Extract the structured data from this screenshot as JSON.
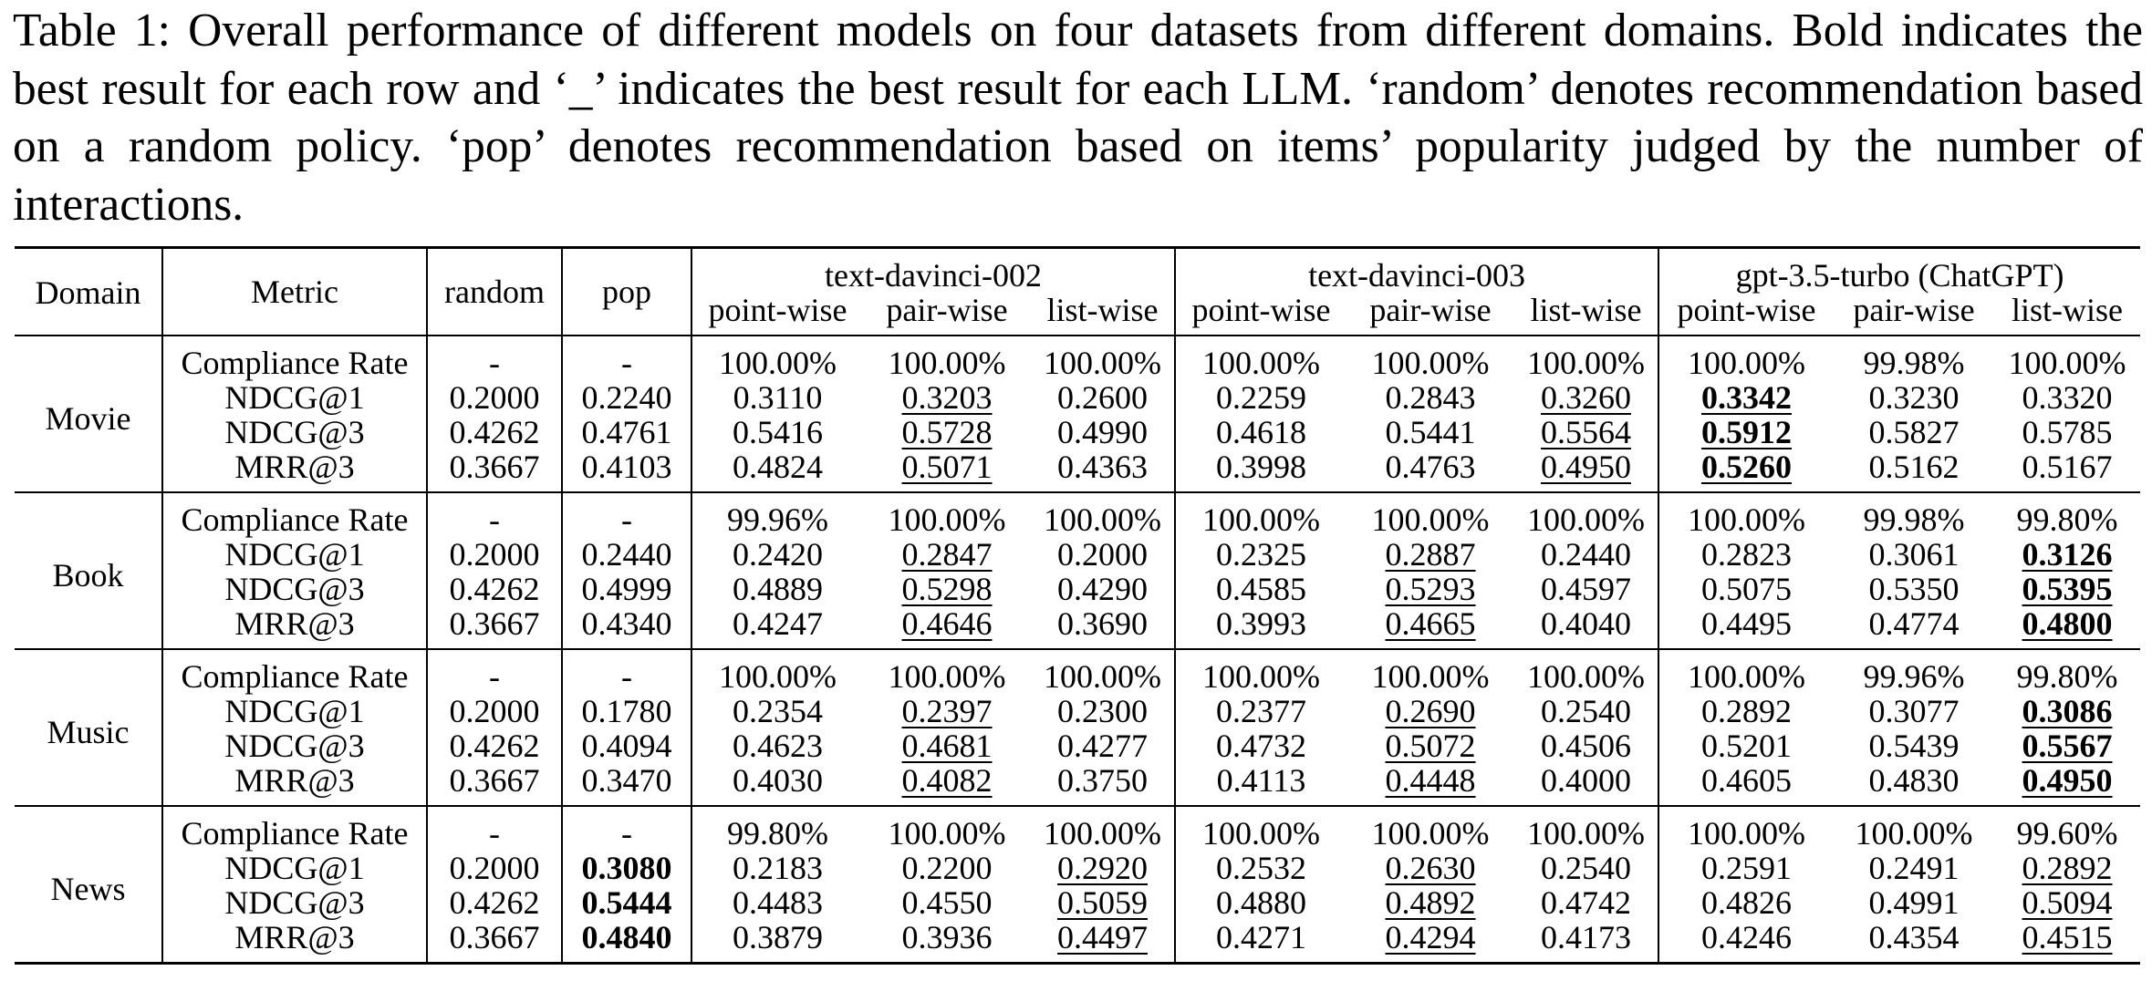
{
  "caption": "Table 1: Overall performance of different models on four datasets from different domains. Bold indicates the best result for each row and ‘_’ indicates the best result for each LLM. ‘random’ denotes recommendation based on a random policy. ‘pop’ denotes recommendation based on items’ popularity judged by the number of interactions.",
  "header": {
    "domain": "Domain",
    "metric": "Metric",
    "random": "random",
    "pop": "pop",
    "models": [
      "text-davinci-002",
      "text-davinci-003",
      "gpt-3.5-turbo (ChatGPT)"
    ],
    "methods": [
      "point-wise",
      "pair-wise",
      "list-wise"
    ]
  },
  "table": {
    "domains": [
      {
        "name": "Movie",
        "rows": [
          {
            "metric": "Compliance Rate",
            "values": [
              "-",
              "-",
              "100.00%",
              "100.00%",
              "100.00%",
              "100.00%",
              "100.00%",
              "100.00%",
              "100.00%",
              "99.98%",
              "100.00%"
            ]
          },
          {
            "metric": "NDCG@1",
            "values": [
              "0.2000",
              "0.2240",
              "0.3110",
              "0.3203",
              "0.2600",
              "0.2259",
              "0.2843",
              "0.3260",
              "0.3342",
              "0.3230",
              "0.3320"
            ]
          },
          {
            "metric": "NDCG@3",
            "values": [
              "0.4262",
              "0.4761",
              "0.5416",
              "0.5728",
              "0.4990",
              "0.4618",
              "0.5441",
              "0.5564",
              "0.5912",
              "0.5827",
              "0.5785"
            ]
          },
          {
            "metric": "MRR@3",
            "values": [
              "0.3667",
              "0.4103",
              "0.4824",
              "0.5071",
              "0.4363",
              "0.3998",
              "0.4763",
              "0.4950",
              "0.5260",
              "0.5162",
              "0.5167"
            ]
          }
        ]
      },
      {
        "name": "Book",
        "rows": [
          {
            "metric": "Compliance Rate",
            "values": [
              "-",
              "-",
              "99.96%",
              "100.00%",
              "100.00%",
              "100.00%",
              "100.00%",
              "100.00%",
              "100.00%",
              "99.98%",
              "99.80%"
            ]
          },
          {
            "metric": "NDCG@1",
            "values": [
              "0.2000",
              "0.2440",
              "0.2420",
              "0.2847",
              "0.2000",
              "0.2325",
              "0.2887",
              "0.2440",
              "0.2823",
              "0.3061",
              "0.3126"
            ]
          },
          {
            "metric": "NDCG@3",
            "values": [
              "0.4262",
              "0.4999",
              "0.4889",
              "0.5298",
              "0.4290",
              "0.4585",
              "0.5293",
              "0.4597",
              "0.5075",
              "0.5350",
              "0.5395"
            ]
          },
          {
            "metric": "MRR@3",
            "values": [
              "0.3667",
              "0.4340",
              "0.4247",
              "0.4646",
              "0.3690",
              "0.3993",
              "0.4665",
              "0.4040",
              "0.4495",
              "0.4774",
              "0.4800"
            ]
          }
        ]
      },
      {
        "name": "Music",
        "rows": [
          {
            "metric": "Compliance Rate",
            "values": [
              "-",
              "-",
              "100.00%",
              "100.00%",
              "100.00%",
              "100.00%",
              "100.00%",
              "100.00%",
              "100.00%",
              "99.96%",
              "99.80%"
            ]
          },
          {
            "metric": "NDCG@1",
            "values": [
              "0.2000",
              "0.1780",
              "0.2354",
              "0.2397",
              "0.2300",
              "0.2377",
              "0.2690",
              "0.2540",
              "0.2892",
              "0.3077",
              "0.3086"
            ]
          },
          {
            "metric": "NDCG@3",
            "values": [
              "0.4262",
              "0.4094",
              "0.4623",
              "0.4681",
              "0.4277",
              "0.4732",
              "0.5072",
              "0.4506",
              "0.5201",
              "0.5439",
              "0.5567"
            ]
          },
          {
            "metric": "MRR@3",
            "values": [
              "0.3667",
              "0.3470",
              "0.4030",
              "0.4082",
              "0.3750",
              "0.4113",
              "0.4448",
              "0.4000",
              "0.4605",
              "0.4830",
              "0.4950"
            ]
          }
        ]
      },
      {
        "name": "News",
        "rows": [
          {
            "metric": "Compliance Rate",
            "values": [
              "-",
              "-",
              "99.80%",
              "100.00%",
              "100.00%",
              "100.00%",
              "100.00%",
              "100.00%",
              "100.00%",
              "100.00%",
              "99.60%"
            ]
          },
          {
            "metric": "NDCG@1",
            "values": [
              "0.2000",
              "0.3080",
              "0.2183",
              "0.2200",
              "0.2920",
              "0.2532",
              "0.2630",
              "0.2540",
              "0.2591",
              "0.2491",
              "0.2892"
            ]
          },
          {
            "metric": "NDCG@3",
            "values": [
              "0.4262",
              "0.5444",
              "0.4483",
              "0.4550",
              "0.5059",
              "0.4880",
              "0.4892",
              "0.4742",
              "0.4826",
              "0.4991",
              "0.5094"
            ]
          },
          {
            "metric": "MRR@3",
            "values": [
              "0.3667",
              "0.4840",
              "0.3879",
              "0.3936",
              "0.4497",
              "0.4271",
              "0.4294",
              "0.4173",
              "0.4246",
              "0.4354",
              "0.4515"
            ]
          }
        ]
      }
    ],
    "bold_cells": [
      [
        0,
        1,
        8
      ],
      [
        0,
        2,
        8
      ],
      [
        0,
        3,
        8
      ],
      [
        1,
        1,
        10
      ],
      [
        1,
        2,
        10
      ],
      [
        1,
        3,
        10
      ],
      [
        2,
        1,
        10
      ],
      [
        2,
        2,
        10
      ],
      [
        2,
        3,
        10
      ],
      [
        3,
        1,
        1
      ],
      [
        3,
        2,
        1
      ],
      [
        3,
        3,
        1
      ]
    ],
    "underlined_cells": [
      [
        0,
        1,
        3
      ],
      [
        0,
        2,
        3
      ],
      [
        0,
        3,
        3
      ],
      [
        0,
        1,
        7
      ],
      [
        0,
        2,
        7
      ],
      [
        0,
        3,
        7
      ],
      [
        0,
        1,
        8
      ],
      [
        0,
        2,
        8
      ],
      [
        0,
        3,
        8
      ],
      [
        1,
        1,
        3
      ],
      [
        1,
        2,
        3
      ],
      [
        1,
        3,
        3
      ],
      [
        1,
        1,
        6
      ],
      [
        1,
        2,
        6
      ],
      [
        1,
        3,
        6
      ],
      [
        1,
        1,
        10
      ],
      [
        1,
        2,
        10
      ],
      [
        1,
        3,
        10
      ],
      [
        2,
        1,
        3
      ],
      [
        2,
        2,
        3
      ],
      [
        2,
        3,
        3
      ],
      [
        2,
        1,
        6
      ],
      [
        2,
        2,
        6
      ],
      [
        2,
        3,
        6
      ],
      [
        2,
        1,
        10
      ],
      [
        2,
        2,
        10
      ],
      [
        2,
        3,
        10
      ],
      [
        3,
        1,
        4
      ],
      [
        3,
        2,
        4
      ],
      [
        3,
        3,
        4
      ],
      [
        3,
        1,
        6
      ],
      [
        3,
        2,
        6
      ],
      [
        3,
        3,
        6
      ],
      [
        3,
        1,
        10
      ],
      [
        3,
        2,
        10
      ],
      [
        3,
        3,
        10
      ]
    ]
  }
}
